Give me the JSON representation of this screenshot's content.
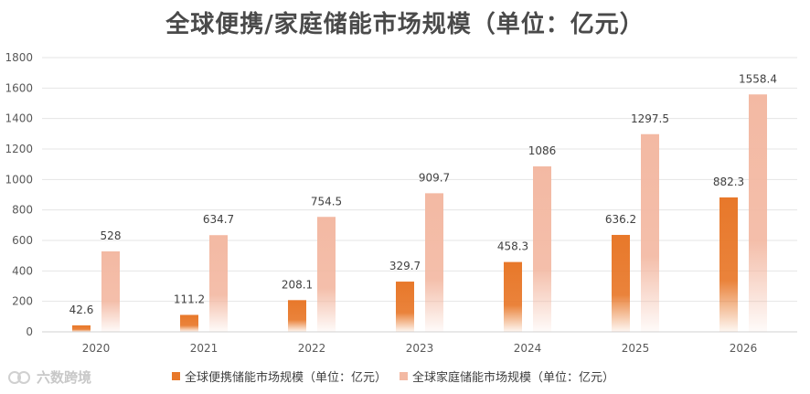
{
  "chart_data": {
    "type": "bar",
    "title": "全球便携/家庭储能市场规模（单位：亿元）",
    "categories": [
      "2020",
      "2021",
      "2022",
      "2023",
      "2024",
      "2025",
      "2026"
    ],
    "series": [
      {
        "name": "全球便携储能市场规模（单位：亿元）",
        "values": [
          42.6,
          111.2,
          208.1,
          329.7,
          458.3,
          636.2,
          882.3
        ],
        "labels": [
          "42.6",
          "111.2",
          "208.1",
          "329.7",
          "458.3",
          "636.2",
          "882.3"
        ],
        "color": "#e8782a"
      },
      {
        "name": "全球家庭储能市场规模（单位：亿元）",
        "values": [
          528,
          634.7,
          754.5,
          909.7,
          1086,
          1297.5,
          1558.4
        ],
        "labels": [
          "528",
          "634.7",
          "754.5",
          "909.7",
          "1086",
          "1297.5",
          "1558.4"
        ],
        "color": "#f3b9a3"
      }
    ],
    "ylim": [
      0,
      1800
    ],
    "yticks": [
      "0",
      "200",
      "400",
      "600",
      "800",
      "1000",
      "1200",
      "1400",
      "1600",
      "1800"
    ],
    "grid": true,
    "legend_position": "bottom"
  },
  "watermark": {
    "text": "六数跨境"
  }
}
